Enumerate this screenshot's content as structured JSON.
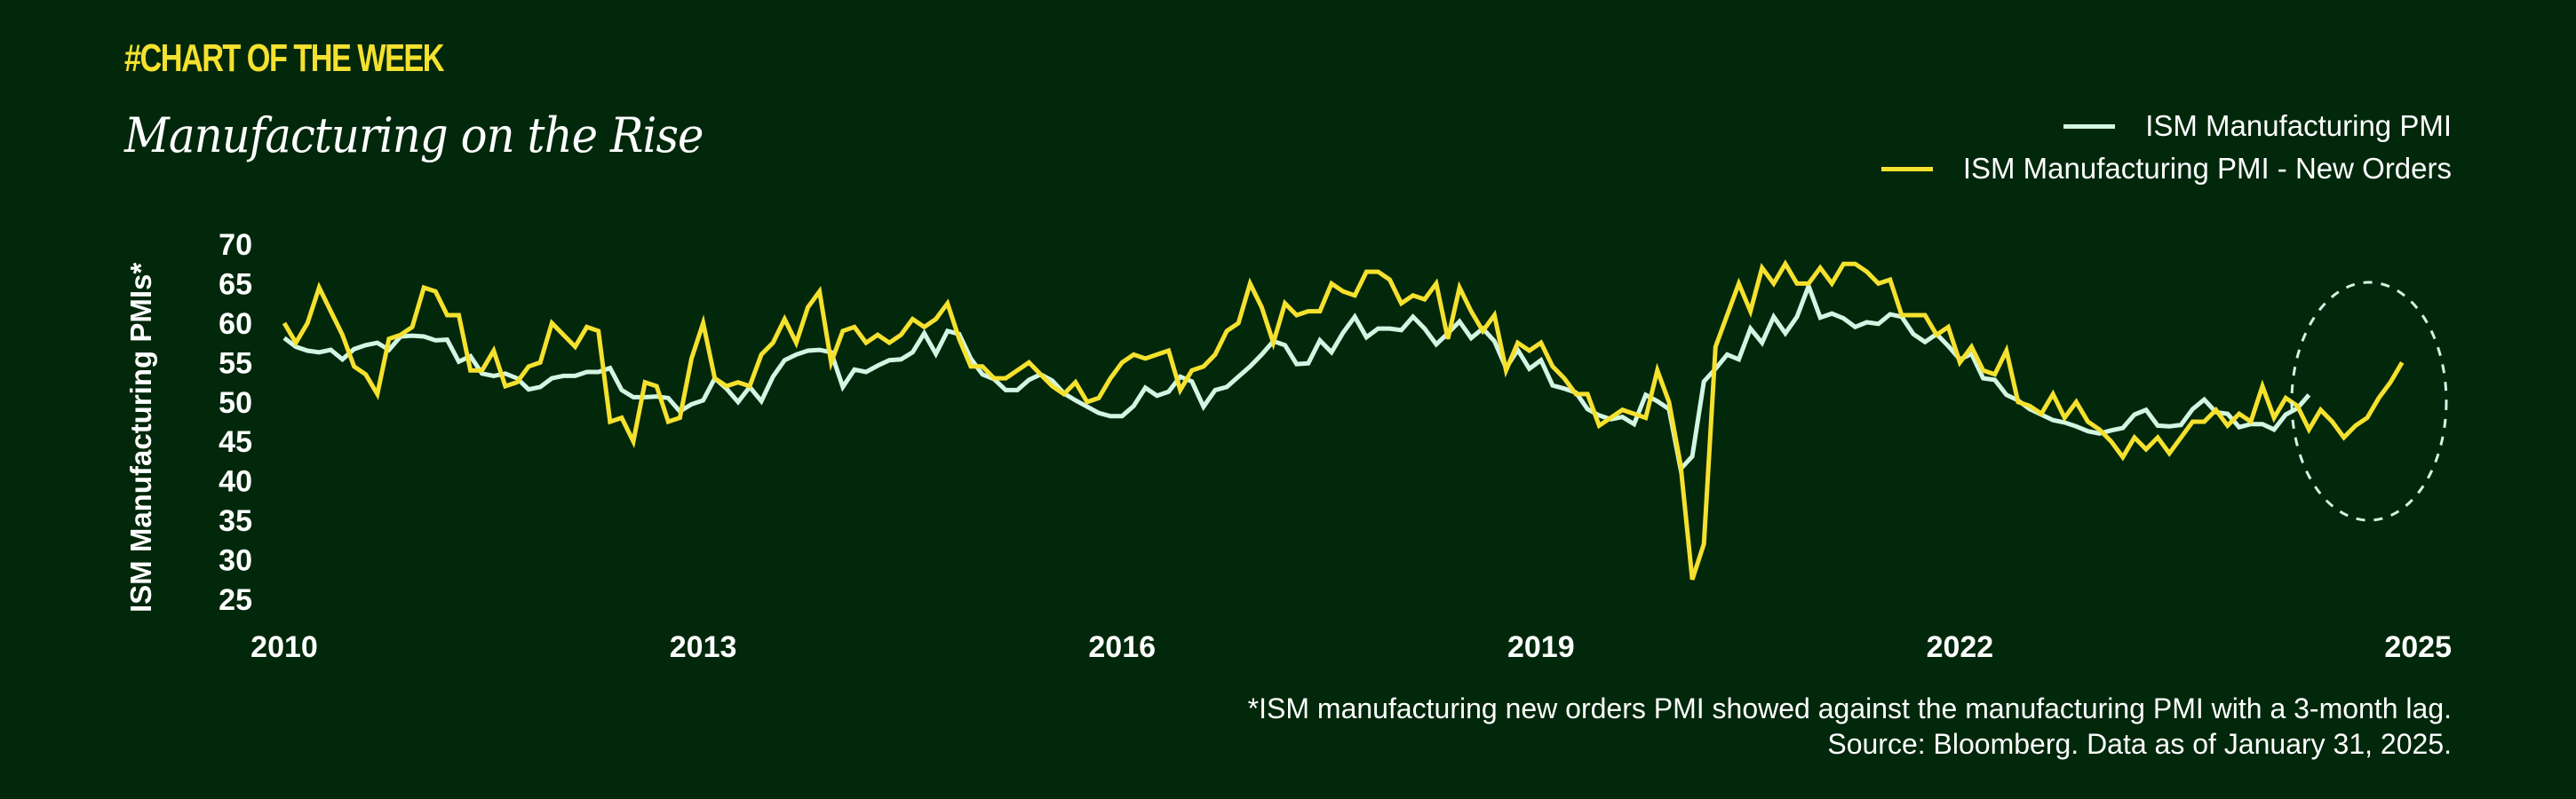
{
  "header": {
    "kicker": "#CHART OF THE WEEK",
    "title": "Manufacturing on the Rise"
  },
  "legend": [
    {
      "label": "ISM Manufacturing PMI",
      "color": "#d3f5e3"
    },
    {
      "label": "ISM Manufacturing PMI - New Orders",
      "color": "#f5e12e"
    }
  ],
  "footnote": {
    "line1": "*ISM manufacturing new orders PMI showed against the manufacturing PMI with a 3-month lag.",
    "line2": "Source: Bloomberg. Data as of January 31, 2025."
  },
  "colors": {
    "background": "#02280b",
    "pmi": "#d3f5e3",
    "new_orders": "#f5e12e",
    "text": "#ffffff",
    "kicker": "#f5e12e"
  },
  "chart_data": {
    "type": "line",
    "title": "Manufacturing on the Rise",
    "xlabel": "",
    "ylabel": "ISM Manufacturing PMIs*",
    "ylim": [
      25,
      70
    ],
    "yticks": [
      70,
      65,
      60,
      55,
      50,
      45,
      40,
      35,
      30,
      25
    ],
    "xticks": [
      "2010",
      "2013",
      "2016",
      "2019",
      "2022",
      "2025"
    ],
    "x_start": "2010-01",
    "x_end": "2025-04",
    "frequency": "monthly",
    "grid": false,
    "legend_position": "top-right",
    "annotation": "dashed ellipse highlighting late 2024 – early 2025 rise",
    "series": [
      {
        "name": "ISM Manufacturing PMI",
        "start": "2010-01",
        "values": [
          58.1,
          57.0,
          56.5,
          56.3,
          56.6,
          55.4,
          56.7,
          57.2,
          57.5,
          56.6,
          58.3,
          58.4,
          58.3,
          57.8,
          57.9,
          55.1,
          55.8,
          53.6,
          53.3,
          53.6,
          53.0,
          51.6,
          51.9,
          53.0,
          53.3,
          53.3,
          53.8,
          53.8,
          54.3,
          51.5,
          50.6,
          50.6,
          50.7,
          50.5,
          48.8,
          49.7,
          50.2,
          53.0,
          51.7,
          50.0,
          51.9,
          50.1,
          53.2,
          55.3,
          56.0,
          56.5,
          56.6,
          56.3,
          51.9,
          54.1,
          53.8,
          54.6,
          55.3,
          55.4,
          56.3,
          58.7,
          56.1,
          59.0,
          58.6,
          55.5,
          53.5,
          52.9,
          51.5,
          51.5,
          52.8,
          53.5,
          52.7,
          51.1,
          50.2,
          49.4,
          48.6,
          48.2,
          48.2,
          49.5,
          51.8,
          50.8,
          51.3,
          53.2,
          52.6,
          49.4,
          51.5,
          51.9,
          53.2,
          54.5,
          56.0,
          57.7,
          57.2,
          54.8,
          54.9,
          57.8,
          56.3,
          58.8,
          60.8,
          58.2,
          59.3,
          59.3,
          59.1,
          60.8,
          59.3,
          57.3,
          58.7,
          60.2,
          58.1,
          59.3,
          57.7,
          54.3,
          56.6,
          54.2,
          55.3,
          52.1,
          51.7,
          51.2,
          49.1,
          48.3,
          47.8,
          48.1,
          47.2,
          50.9,
          50.1,
          49.1,
          41.5,
          43.1,
          52.6,
          54.2,
          56.0,
          55.4,
          59.3,
          57.5,
          60.8,
          58.7,
          60.8,
          64.7,
          60.7,
          61.2,
          60.6,
          59.5,
          60.1,
          59.9,
          61.1,
          60.8,
          58.6,
          57.6,
          58.6,
          57.1,
          55.4,
          56.1,
          53.0,
          52.8,
          50.9,
          50.2,
          49.1,
          48.4,
          47.7,
          47.4,
          46.9,
          46.3,
          46.0,
          46.4,
          46.7,
          48.4,
          49.0,
          47.0,
          46.9,
          47.1,
          49.1,
          50.3,
          48.7,
          48.5,
          46.8,
          47.2,
          47.2,
          46.5,
          48.4,
          49.2,
          50.9
        ]
      },
      {
        "name": "ISM Manufacturing PMI - New Orders",
        "start": "2010-01",
        "note": "3-month lag applied",
        "values": [
          60.0,
          57.5,
          60.0,
          64.5,
          61.5,
          58.5,
          54.5,
          53.5,
          51.0,
          58.0,
          58.5,
          59.5,
          64.5,
          64.0,
          61.0,
          61.0,
          54.0,
          54.0,
          56.5,
          52.0,
          52.5,
          54.5,
          55.0,
          60.0,
          58.5,
          57.0,
          59.5,
          59.0,
          47.5,
          48.0,
          45.0,
          52.5,
          52.0,
          47.5,
          48.0,
          55.5,
          60.0,
          53.0,
          52.0,
          52.5,
          52.0,
          56.0,
          57.5,
          60.5,
          57.5,
          62.0,
          64.0,
          55.0,
          59.0,
          59.5,
          57.5,
          58.5,
          57.5,
          58.5,
          60.5,
          59.5,
          60.5,
          62.5,
          58.0,
          54.5,
          54.5,
          53.0,
          53.0,
          54.0,
          55.0,
          53.5,
          52.0,
          51.0,
          52.5,
          50.0,
          50.5,
          53.0,
          55.0,
          56.0,
          55.5,
          56.0,
          56.5,
          51.5,
          54.0,
          54.5,
          56.0,
          59.0,
          60.0,
          65.0,
          62.0,
          57.5,
          62.5,
          61.0,
          61.5,
          61.5,
          65.0,
          64.0,
          63.5,
          66.5,
          66.5,
          65.5,
          62.5,
          63.5,
          63.0,
          65.0,
          58.0,
          64.5,
          61.5,
          59.0,
          61.0,
          54.0,
          57.5,
          56.5,
          57.5,
          54.5,
          53.0,
          51.0,
          51.0,
          47.0,
          48.0,
          49.0,
          48.5,
          48.0,
          54.0,
          50.0,
          42.0,
          27.5,
          32.0,
          57.0,
          61.0,
          65.0,
          61.5,
          67.0,
          65.0,
          67.5,
          65.0,
          65.0,
          67.0,
          65.0,
          67.5,
          67.5,
          66.5,
          65.0,
          65.5,
          61.0,
          61.0,
          61.0,
          58.5,
          59.5,
          55.0,
          57.0,
          54.0,
          53.5,
          56.5,
          50.0,
          49.5,
          48.5,
          51.0,
          48.0,
          50.0,
          47.5,
          46.5,
          45.0,
          43.0,
          45.5,
          44.0,
          45.5,
          43.5,
          45.5,
          47.5,
          47.5,
          49.0,
          47.0,
          48.5,
          47.5,
          52.0,
          48.0,
          50.5,
          49.5,
          46.5,
          49.0,
          47.5,
          45.5,
          47.0,
          48.0,
          50.5,
          52.5,
          55.0
        ]
      }
    ]
  }
}
